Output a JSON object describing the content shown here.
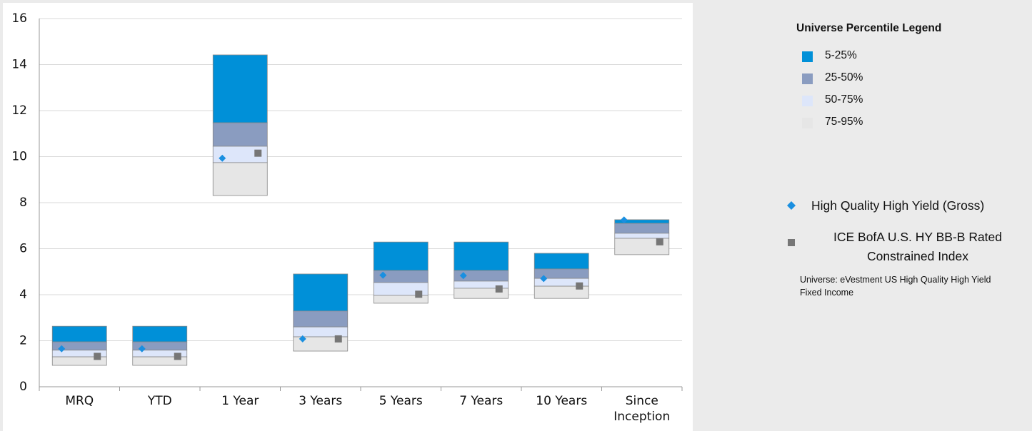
{
  "chart_data": {
    "type": "floating_box",
    "categories": [
      "MRQ",
      "YTD",
      "1 Year",
      "3 Years",
      "5 Years",
      "7 Years",
      "10 Years",
      "Since Inception"
    ],
    "levels": [
      [
        2.63,
        2.63,
        14.42,
        4.9,
        6.29,
        6.29,
        5.8,
        7.26
      ],
      [
        1.95,
        1.95,
        11.47,
        3.29,
        5.05,
        5.05,
        5.12,
        7.1
      ],
      [
        1.59,
        1.59,
        10.45,
        2.6,
        4.53,
        4.59,
        4.71,
        6.67
      ],
      [
        1.3,
        1.3,
        9.74,
        2.17,
        3.97,
        4.28,
        4.37,
        6.45
      ],
      [
        0.93,
        0.93,
        8.31,
        1.55,
        3.63,
        3.84,
        3.84,
        5.74
      ]
    ],
    "bands": [
      {
        "name": "5-25%",
        "color": "#0090d8"
      },
      {
        "name": "25-50%",
        "color": "#8a9cc0"
      },
      {
        "name": "50-75%",
        "color": "#dde6fa"
      },
      {
        "name": "75-95%",
        "color": "#e6e6e6"
      }
    ],
    "legend_title": "Universe Percentile Legend",
    "series": [
      {
        "name": "High Quality High Yield (Gross)",
        "color": "#1a8fe0",
        "marker": "diamond",
        "values": [
          1.65,
          1.65,
          9.93,
          2.08,
          4.85,
          4.83,
          4.7,
          7.25
        ]
      },
      {
        "name": "ICE BofA U.S. HY BB-B Rated Constrained Index",
        "color": "#767676",
        "marker": "square",
        "values": [
          1.32,
          1.32,
          10.15,
          2.08,
          4.02,
          4.25,
          4.38,
          6.3
        ]
      }
    ],
    "note": "Universe: eVestment US High Quality High Yield Fixed Income",
    "ylim": [
      0,
      16
    ],
    "yticks": [
      0,
      2,
      4,
      6,
      8,
      10,
      12,
      14,
      16
    ],
    "grid": true
  }
}
